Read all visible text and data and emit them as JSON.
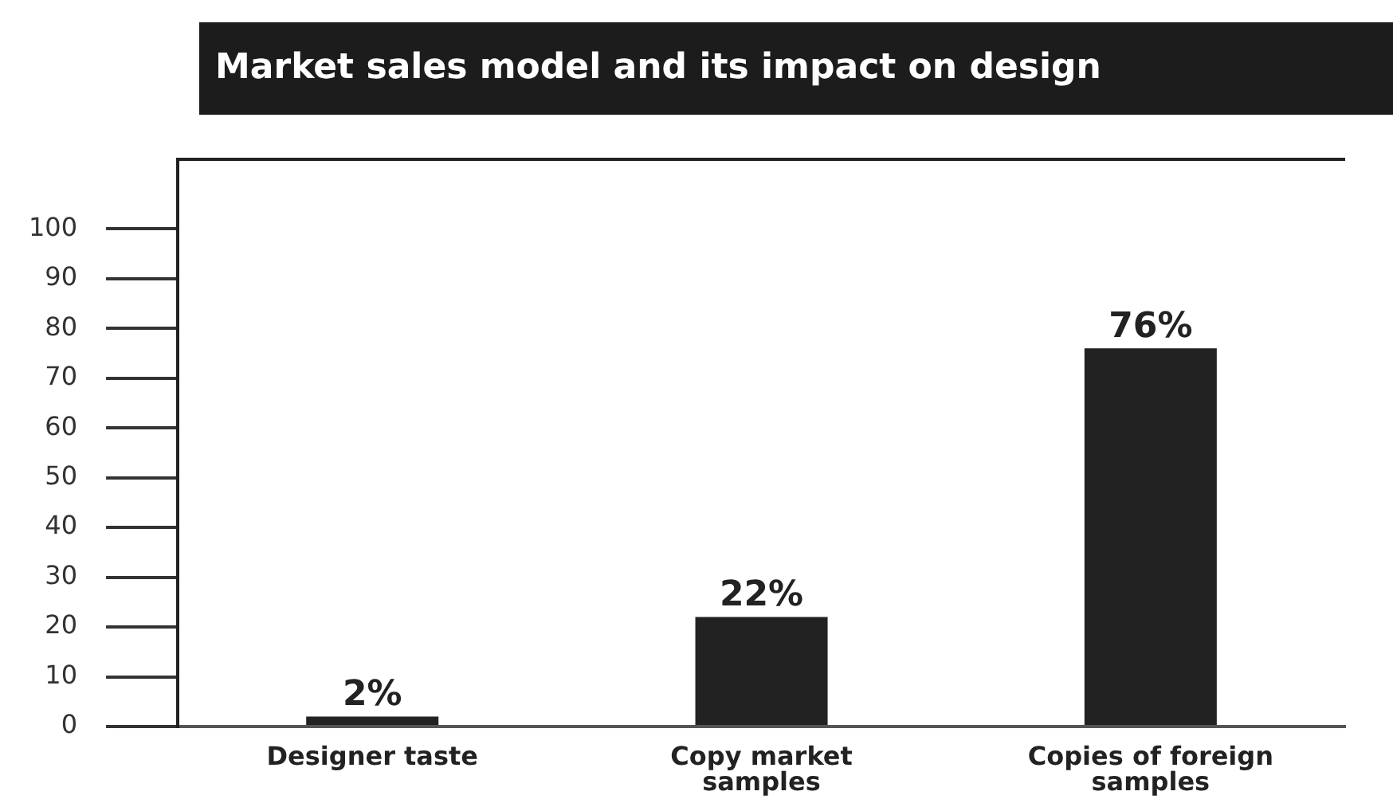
{
  "chart_data": {
    "type": "bar",
    "title": "Market sales model and its impact on design",
    "categories": [
      "Designer taste",
      "Copy market samples",
      "Copies of foreign samples"
    ],
    "values": [
      2,
      22,
      76
    ],
    "value_labels": [
      "2%",
      "22%",
      "76%"
    ],
    "color": "#222222",
    "ylim": [
      0,
      114
    ],
    "yticks": [
      0,
      10,
      20,
      30,
      40,
      50,
      60,
      70,
      80,
      90,
      100
    ],
    "grid": false,
    "legend": false
  }
}
